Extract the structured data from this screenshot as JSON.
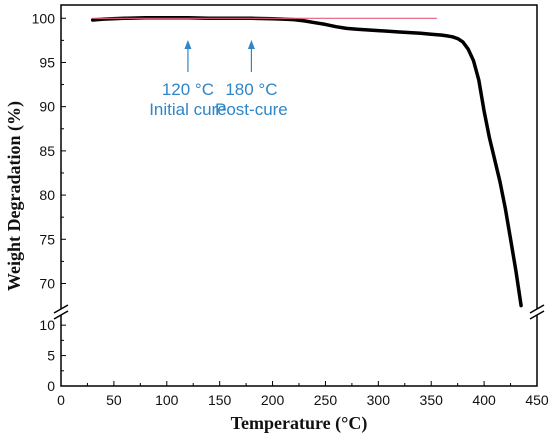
{
  "chart_data": {
    "type": "line",
    "title": "",
    "xlabel": "Temperature (°C)",
    "ylabel": "Weight Degradation (%)",
    "xlim": [
      0,
      450
    ],
    "x_ticks": [
      0,
      50,
      100,
      150,
      200,
      250,
      300,
      350,
      400,
      450
    ],
    "y_axis_break": {
      "lower_range": [
        0,
        12
      ],
      "lower_ticks": [
        0,
        5,
        10
      ],
      "upper_range": [
        67,
        101.5
      ],
      "upper_ticks": [
        70,
        75,
        80,
        85,
        90,
        95,
        100
      ]
    },
    "grid": false,
    "series": [
      {
        "color": "#000000",
        "x": [
          30,
          40,
          60,
          80,
          100,
          120,
          140,
          160,
          180,
          200,
          210,
          220,
          230,
          240,
          250,
          260,
          270,
          280,
          300,
          320,
          340,
          350,
          360,
          365,
          370,
          375,
          380,
          385,
          390,
          395,
          400,
          405,
          410,
          415,
          420,
          425,
          430,
          435
        ],
        "y": [
          99.8,
          99.9,
          100.0,
          100.05,
          100.05,
          100.05,
          100.0,
          100.0,
          100.0,
          99.95,
          99.9,
          99.85,
          99.7,
          99.5,
          99.3,
          99.05,
          98.85,
          98.75,
          98.6,
          98.45,
          98.3,
          98.2,
          98.1,
          98.0,
          97.9,
          97.7,
          97.3,
          96.5,
          95.2,
          93.0,
          89.5,
          86.5,
          84.0,
          81.5,
          78.5,
          75.0,
          71.5,
          67.5
        ]
      },
      {
        "color": "#e0607a",
        "x": [
          30,
          355
        ],
        "y": [
          100,
          100
        ]
      }
    ],
    "annotations": [
      {
        "x": 120,
        "lines": [
          "120 °C",
          "Initial cure"
        ],
        "color": "#2f86c8"
      },
      {
        "x": 180,
        "lines": [
          "180 °C",
          "Post-cure"
        ],
        "color": "#2f86c8"
      }
    ]
  }
}
